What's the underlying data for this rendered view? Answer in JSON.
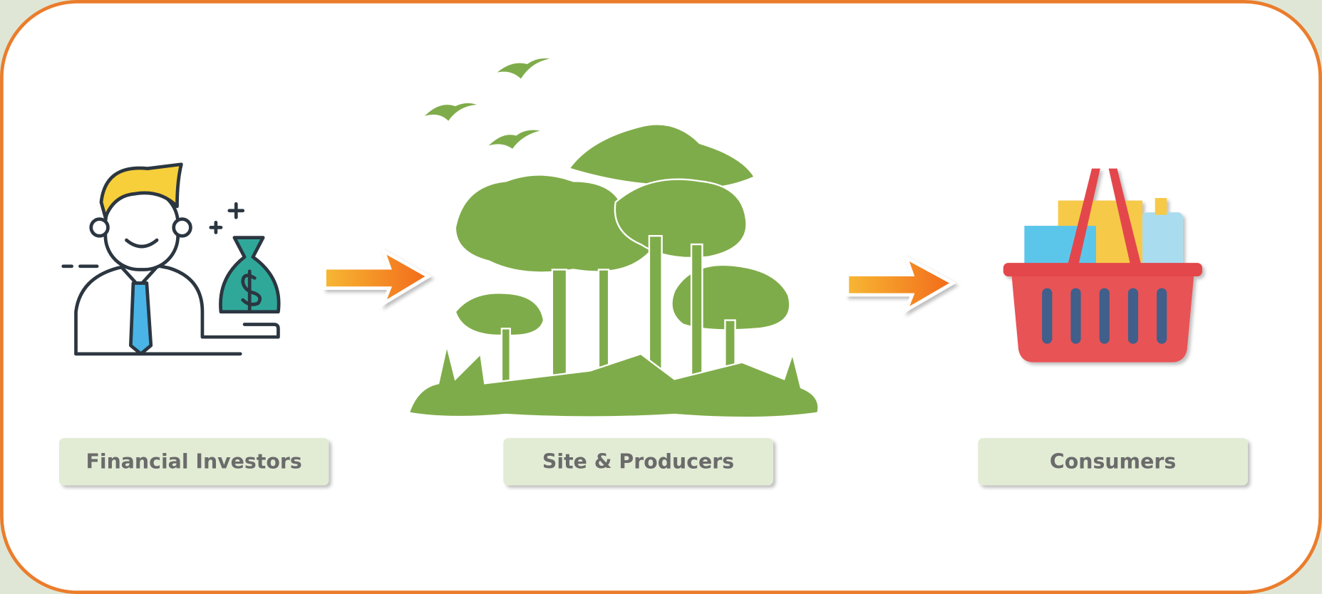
{
  "nodes": [
    {
      "label": "Financial Investors"
    },
    {
      "label": "Site & Producers"
    },
    {
      "label": "Consumers"
    }
  ]
}
